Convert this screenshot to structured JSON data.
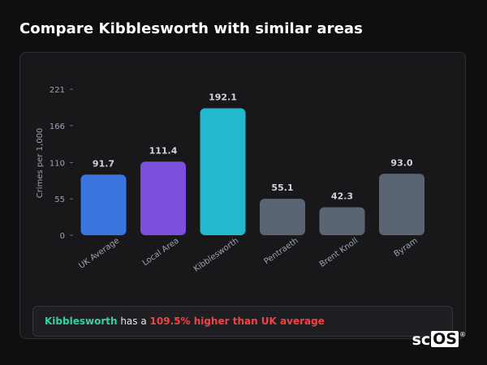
{
  "page": {
    "title": "Compare Kibblesworth with similar areas"
  },
  "chart_data": {
    "type": "bar",
    "ylabel": "Crimes per 1,000",
    "xlabel": "",
    "ylim": [
      0,
      221
    ],
    "yticks": [
      0,
      55,
      110,
      166,
      221
    ],
    "grid": false,
    "categories": [
      "UK Average",
      "Local Area",
      "Kibblesworth",
      "Pentraeth",
      "Brent Knoll",
      "Byram"
    ],
    "values": [
      91.7,
      111.4,
      192.1,
      55.1,
      42.3,
      93.0
    ],
    "value_labels": [
      "91.7",
      "111.4",
      "192.1",
      "55.1",
      "42.3",
      "93.0"
    ],
    "colors": [
      "#3b76e0",
      "#7b4fdc",
      "#22b8cf",
      "#5b6472",
      "#5b6472",
      "#5b6472"
    ]
  },
  "callout": {
    "area": "Kibblesworth",
    "middle": " has a ",
    "highlight": "109.5% higher than UK average",
    "highlight_color": "#ef4444",
    "area_color": "#34d1a6"
  },
  "logo": {
    "sc": "sc",
    "os": "OS",
    "reg": "®"
  }
}
